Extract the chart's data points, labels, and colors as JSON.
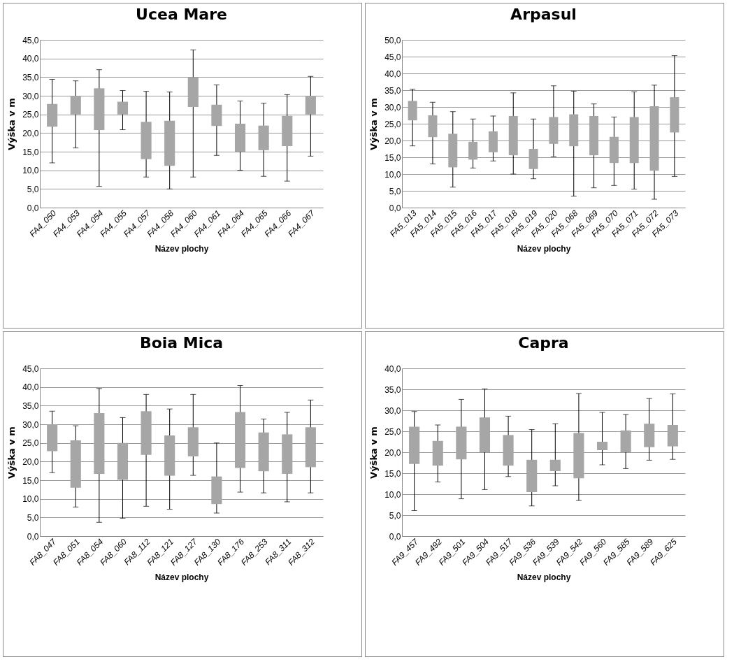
{
  "chart_data": [
    {
      "type": "bar",
      "title": "Ucea Mare",
      "xlabel": "Název plochy",
      "ylabel": "Výška v m",
      "color": "#a6a6a6",
      "grid": "y",
      "ylim": [
        0,
        45
      ],
      "yticks": [
        {
          "value": 0,
          "label": "0,0"
        },
        {
          "value": 5,
          "label": "5,0"
        },
        {
          "value": 10,
          "label": "10,0"
        },
        {
          "value": 15,
          "label": "15,0"
        },
        {
          "value": 20,
          "label": "20,0"
        },
        {
          "value": 25,
          "label": "25,0"
        },
        {
          "value": 30,
          "label": "30,0"
        },
        {
          "value": 35,
          "label": "35,0"
        },
        {
          "value": 40,
          "label": "40,0"
        },
        {
          "value": 45,
          "label": "45,0"
        }
      ],
      "categories": [
        "FA4_050",
        "FA4_053",
        "FA4_054",
        "FA4_055",
        "FA4_057",
        "FA4_058",
        "FA4_060",
        "FA4_061",
        "FA4_064",
        "FA4_065",
        "FA4_066",
        "FA4_067"
      ],
      "base": [
        21.7,
        25,
        20.8,
        25,
        13,
        11.2,
        27,
        21.9,
        15,
        15.4,
        16.5,
        25
      ],
      "values": [
        6.1,
        5,
        11.2,
        3.4,
        10,
        12.1,
        8,
        5.7,
        7.5,
        6.6,
        8.1,
        5
      ],
      "errors": [
        [
          12,
          34.4
        ],
        [
          16,
          34
        ],
        [
          5.7,
          37
        ],
        [
          20.9,
          31.4
        ],
        [
          8.2,
          31.2
        ],
        [
          5,
          31
        ],
        [
          8.2,
          42.3
        ],
        [
          14,
          32.9
        ],
        [
          10,
          28.6
        ],
        [
          8.4,
          28
        ],
        [
          7.1,
          30.3
        ],
        [
          13.8,
          35.2
        ]
      ]
    },
    {
      "type": "bar",
      "title": "Arpasul",
      "xlabel": "Název plochy",
      "ylabel": "Výška v m",
      "color": "#a6a6a6",
      "grid": "y",
      "ylim": [
        0,
        50
      ],
      "yticks": [
        {
          "value": 0,
          "label": "0,0"
        },
        {
          "value": 5,
          "label": "5,0"
        },
        {
          "value": 10,
          "label": "10,0"
        },
        {
          "value": 15,
          "label": "15,0"
        },
        {
          "value": 20,
          "label": "20,0"
        },
        {
          "value": 25,
          "label": "25,0"
        },
        {
          "value": 30,
          "label": "30,0"
        },
        {
          "value": 35,
          "label": "35,0"
        },
        {
          "value": 40,
          "label": "40,0"
        },
        {
          "value": 45,
          "label": "45,0"
        },
        {
          "value": 50,
          "label": "50,0"
        }
      ],
      "categories": [
        "FA5_013",
        "FA5_014",
        "FA5_015",
        "FA5_016",
        "FA5_017",
        "FA5_018",
        "FA5_019",
        "FA5_020",
        "FA5_068",
        "FA5_069",
        "FA5_070",
        "FA5_071",
        "FA5_072",
        "FA5_073"
      ],
      "base": [
        26,
        21,
        12,
        14.3,
        16.5,
        15.6,
        11.5,
        19,
        18.3,
        15.6,
        13.3,
        13.3,
        11,
        22.4
      ],
      "values": [
        5.8,
        6.5,
        10,
        5.3,
        6.2,
        11.7,
        6,
        8,
        9.5,
        11.7,
        7.8,
        13.7,
        19.2,
        10.5
      ],
      "errors": [
        [
          18.4,
          35.3
        ],
        [
          13,
          31.4
        ],
        [
          6.1,
          28.6
        ],
        [
          11.8,
          26.4
        ],
        [
          13.9,
          27.3
        ],
        [
          10,
          34.2
        ],
        [
          8.6,
          26.4
        ],
        [
          15.2,
          36.3
        ],
        [
          3.4,
          34.7
        ],
        [
          5.9,
          30.9
        ],
        [
          6.6,
          27
        ],
        [
          5.5,
          34.5
        ],
        [
          2.5,
          36.5
        ],
        [
          9.3,
          45.3
        ]
      ]
    },
    {
      "type": "bar",
      "title": "Boia Mica",
      "xlabel": "Název plochy",
      "ylabel": "Výška v m",
      "color": "#a6a6a6",
      "grid": "y",
      "ylim": [
        0,
        45
      ],
      "yticks": [
        {
          "value": 0,
          "label": "0,0"
        },
        {
          "value": 5,
          "label": "5,0"
        },
        {
          "value": 10,
          "label": "10,0"
        },
        {
          "value": 15,
          "label": "15,0"
        },
        {
          "value": 20,
          "label": "20,0"
        },
        {
          "value": 25,
          "label": "25,0"
        },
        {
          "value": 30,
          "label": "30,0"
        },
        {
          "value": 35,
          "label": "35,0"
        },
        {
          "value": 40,
          "label": "40,0"
        },
        {
          "value": 45,
          "label": "45,0"
        }
      ],
      "categories": [
        "FA8_047",
        "FA8_051",
        "FA8_054",
        "FA8_060",
        "FA8_112",
        "FA8_121",
        "FA8_127",
        "FA8_130",
        "FA8_176",
        "FA8_253",
        "FA8_311",
        "FA8_312"
      ],
      "base": [
        22.8,
        13,
        16.7,
        15.1,
        21.8,
        16.2,
        21.4,
        8.6,
        18.3,
        17.4,
        16.7,
        18.5
      ],
      "values": [
        7.2,
        12.7,
        16.3,
        9.9,
        11.7,
        10.8,
        7.8,
        7.4,
        15,
        10.4,
        10.6,
        10.7
      ],
      "errors": [
        [
          17,
          33.5
        ],
        [
          7.8,
          29.6
        ],
        [
          3.7,
          39.6
        ],
        [
          4.8,
          31.8
        ],
        [
          8,
          38
        ],
        [
          7.2,
          34.1
        ],
        [
          16.3,
          38
        ],
        [
          6.2,
          25
        ],
        [
          11.8,
          40.4
        ],
        [
          11.6,
          31.4
        ],
        [
          9.2,
          33.2
        ],
        [
          11.6,
          36.5
        ]
      ]
    },
    {
      "type": "bar",
      "title": "Capra",
      "xlabel": "Název plochy",
      "ylabel": "Výška v m",
      "color": "#a6a6a6",
      "grid": "y",
      "ylim": [
        0,
        40
      ],
      "yticks": [
        {
          "value": 0,
          "label": "0,0"
        },
        {
          "value": 5,
          "label": "5,0"
        },
        {
          "value": 10,
          "label": "10,0"
        },
        {
          "value": 15,
          "label": "15,0"
        },
        {
          "value": 20,
          "label": "20,0"
        },
        {
          "value": 25,
          "label": "25,0"
        },
        {
          "value": 30,
          "label": "30,0"
        },
        {
          "value": 35,
          "label": "35,0"
        },
        {
          "value": 40,
          "label": "40,0"
        }
      ],
      "categories": [
        "FA9_457",
        "FA9_492",
        "FA9_501",
        "FA9_504",
        "FA9_517",
        "FA9_536",
        "FA9_539",
        "FA9_542",
        "FA9_560",
        "FA9_585",
        "FA9_589",
        "FA9_625"
      ],
      "base": [
        17.2,
        16.8,
        18.3,
        20,
        16.8,
        10.5,
        15.5,
        13.8,
        20.5,
        20,
        21.2,
        21.4
      ],
      "values": [
        8.9,
        5.9,
        7.8,
        8.3,
        7.3,
        7.7,
        2.7,
        10.8,
        2,
        5.2,
        5.6,
        5.1
      ],
      "errors": [
        [
          6.1,
          29.7
        ],
        [
          12.9,
          26.5
        ],
        [
          8.9,
          32.6
        ],
        [
          11.1,
          35.1
        ],
        [
          14.2,
          28.6
        ],
        [
          7.2,
          25.4
        ],
        [
          12,
          26.8
        ],
        [
          8.5,
          34
        ],
        [
          17,
          29.5
        ],
        [
          16.1,
          29
        ],
        [
          18.1,
          32.8
        ],
        [
          18.3,
          33.9
        ]
      ]
    }
  ]
}
